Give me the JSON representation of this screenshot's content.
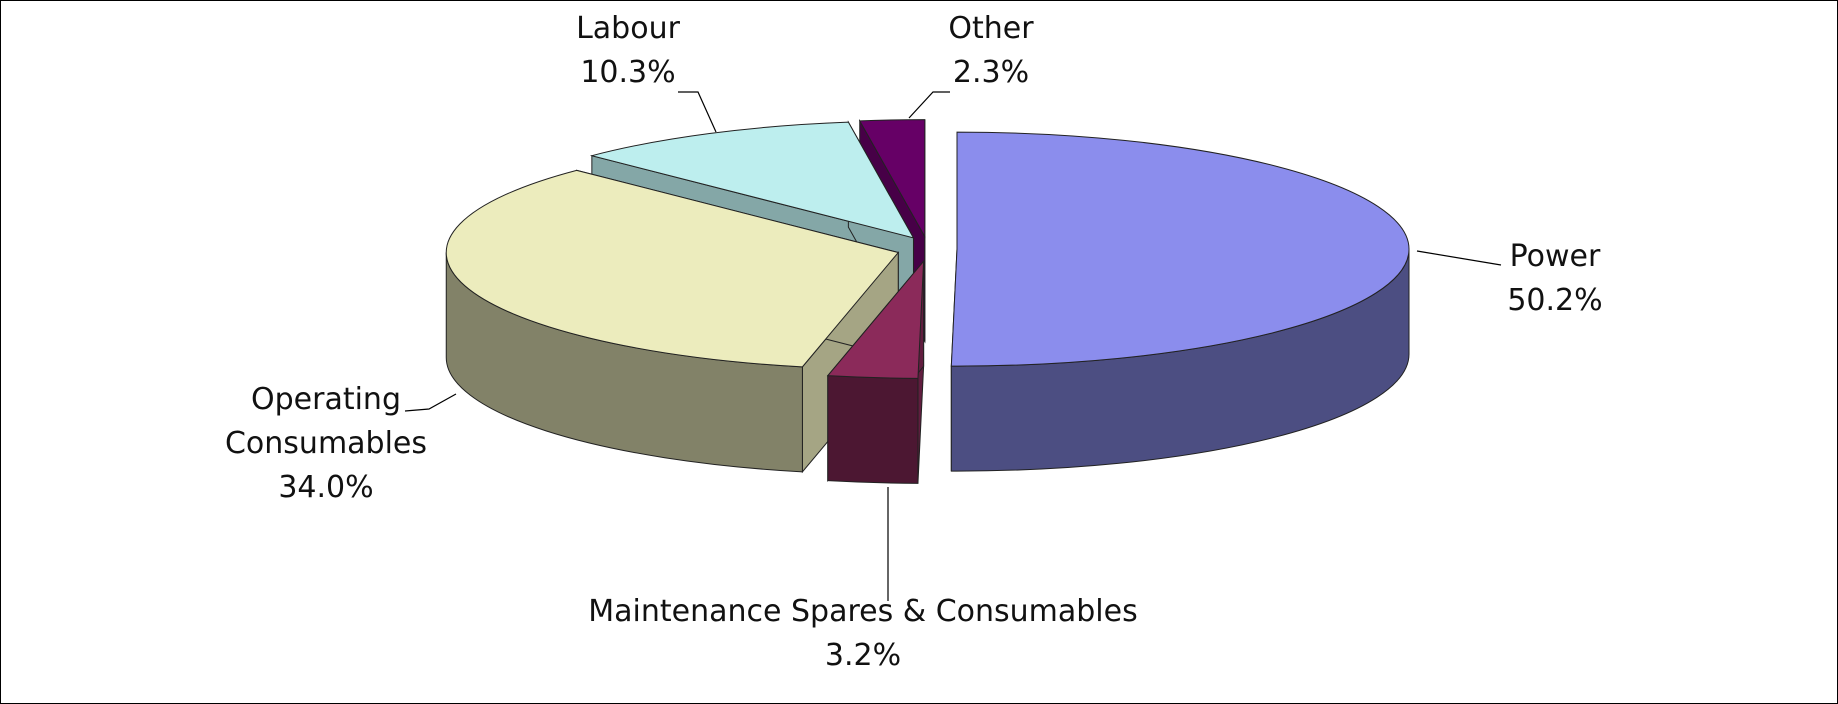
{
  "chart_data": {
    "type": "pie",
    "categories": [
      "Power",
      "Maintenance Spares & Consumables",
      "Operating Consumables",
      "Labour",
      "Other"
    ],
    "values": [
      50.2,
      3.2,
      34.0,
      10.3,
      2.3
    ],
    "value_labels": [
      "50.2%",
      "3.2%",
      "34.0%",
      "10.3%",
      "2.3%"
    ],
    "colors": [
      "#8b8ded",
      "#8b2a5a",
      "#ececbd",
      "#bdeeee",
      "#660066"
    ]
  }
}
